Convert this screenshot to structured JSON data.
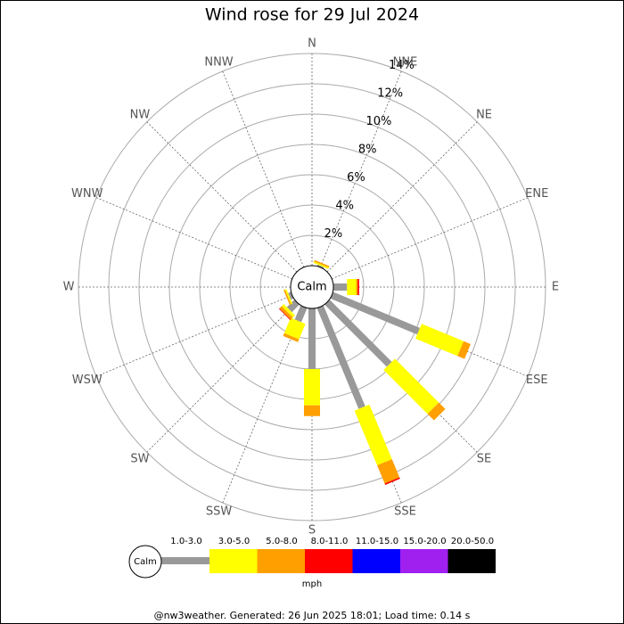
{
  "chart_data": {
    "type": "windrose",
    "title": "Wind rose for 29 Jul 2024",
    "categories": [
      "N",
      "NNE",
      "NE",
      "ENE",
      "E",
      "ESE",
      "SE",
      "SSE",
      "S",
      "SSW",
      "SW",
      "WSW",
      "W",
      "WNW",
      "NW",
      "NNW"
    ],
    "calm_label": "Calm",
    "unit": "mph",
    "footer": "@nw3weather. Generated: 26 Jun 2025 18:01; Load time: 0.14 s",
    "ylim": [
      0,
      14
    ],
    "yticks": [
      {
        "value": 2,
        "label": "2%"
      },
      {
        "value": 4,
        "label": "4%"
      },
      {
        "value": 6,
        "label": "6%"
      },
      {
        "value": 8,
        "label": "8%"
      },
      {
        "value": 10,
        "label": "10%"
      },
      {
        "value": 12,
        "label": "12%"
      },
      {
        "value": 14,
        "label": "14%"
      }
    ],
    "series": [
      {
        "name": "1.0-3.0",
        "color": "#999999",
        "values": [
          0,
          0.1,
          0,
          0,
          0.9,
          6.2,
          5.8,
          7.2,
          4.0,
          1.0,
          0.7,
          0.2,
          0,
          0,
          0,
          0
        ]
      },
      {
        "name": "3.0-5.0",
        "color": "#ffff00",
        "values": [
          0,
          0.1,
          0,
          0,
          0.6,
          3.0,
          4.1,
          3.9,
          2.4,
          1.1,
          0.2,
          0.1,
          0,
          0,
          0,
          0
        ]
      },
      {
        "name": "5.0-8.0",
        "color": "#ff9f00",
        "values": [
          0,
          0.1,
          0,
          0,
          0.1,
          0.5,
          0.6,
          1.3,
          0.7,
          0.2,
          0.2,
          0.1,
          0,
          0,
          0,
          0
        ]
      },
      {
        "name": "8.0-11.0",
        "color": "#ff0000",
        "values": [
          0,
          0,
          0,
          0,
          0.1,
          0,
          0,
          0.1,
          0,
          0,
          0.05,
          0,
          0,
          0,
          0,
          0
        ]
      },
      {
        "name": "11.0-15.0",
        "color": "#0000ff",
        "values": [
          0,
          0,
          0,
          0,
          0,
          0,
          0,
          0,
          0,
          0,
          0,
          0,
          0,
          0,
          0,
          0
        ]
      },
      {
        "name": "15.0-20.0",
        "color": "#a020f0",
        "values": [
          0,
          0,
          0,
          0,
          0,
          0,
          0,
          0,
          0,
          0,
          0,
          0,
          0,
          0,
          0,
          0
        ]
      },
      {
        "name": "20.0-50.0",
        "color": "#000000",
        "values": [
          0,
          0,
          0,
          0,
          0,
          0,
          0,
          0,
          0,
          0,
          0,
          0,
          0,
          0,
          0,
          0
        ]
      }
    ]
  }
}
